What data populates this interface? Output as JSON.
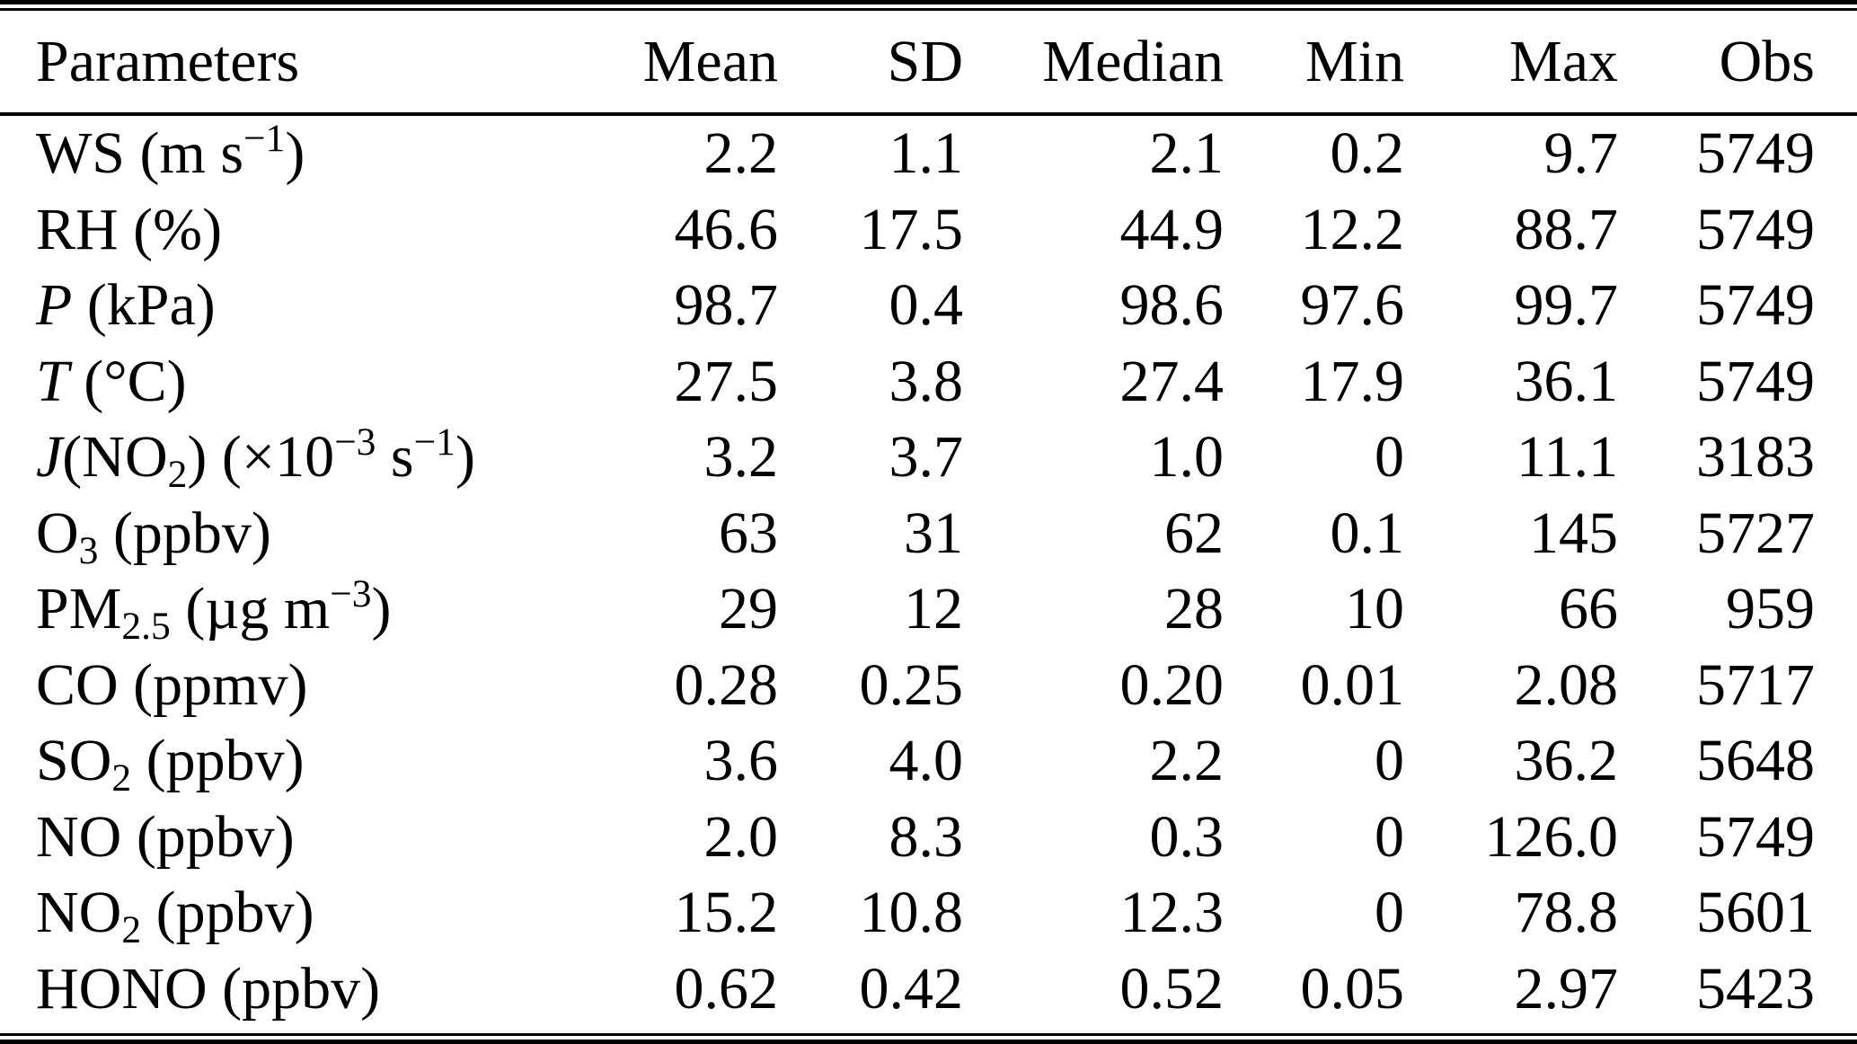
{
  "page": {
    "background": "#ffffff",
    "text_color": "#000000"
  },
  "table": {
    "columns": [
      {
        "key": "param",
        "label": "Parameters",
        "align": "left"
      },
      {
        "key": "mean",
        "label": "Mean",
        "align": "right"
      },
      {
        "key": "sd",
        "label": "SD",
        "align": "right"
      },
      {
        "key": "median",
        "label": "Median",
        "align": "right"
      },
      {
        "key": "min",
        "label": "Min",
        "align": "right"
      },
      {
        "key": "max",
        "label": "Max",
        "align": "right"
      },
      {
        "key": "obs",
        "label": "Obs",
        "align": "right"
      }
    ],
    "rows": [
      {
        "param": [
          {
            "t": "WS (m s"
          },
          {
            "t": "−1",
            "s": "sup"
          },
          {
            "t": ")"
          }
        ],
        "values": [
          "2.2",
          "1.1",
          "2.1",
          "0.2",
          "9.7",
          "5749"
        ]
      },
      {
        "param": [
          {
            "t": "RH (%)"
          }
        ],
        "values": [
          "46.6",
          "17.5",
          "44.9",
          "12.2",
          "88.7",
          "5749"
        ]
      },
      {
        "param": [
          {
            "t": "P",
            "s": "i"
          },
          {
            "t": " (kPa)"
          }
        ],
        "values": [
          "98.7",
          "0.4",
          "98.6",
          "97.6",
          "99.7",
          "5749"
        ]
      },
      {
        "param": [
          {
            "t": "T",
            "s": "i"
          },
          {
            "t": " (°C)"
          }
        ],
        "values": [
          "27.5",
          "3.8",
          "27.4",
          "17.9",
          "36.1",
          "5749"
        ]
      },
      {
        "param": [
          {
            "t": "J",
            "s": "i"
          },
          {
            "t": "(NO"
          },
          {
            "t": "2",
            "s": "sub"
          },
          {
            "t": ") (×10"
          },
          {
            "t": "−3",
            "s": "sup"
          },
          {
            "t": " s"
          },
          {
            "t": "−1",
            "s": "sup"
          },
          {
            "t": ")"
          }
        ],
        "values": [
          "3.2",
          "3.7",
          "1.0",
          "0",
          "11.1",
          "3183"
        ]
      },
      {
        "param": [
          {
            "t": "O"
          },
          {
            "t": "3",
            "s": "sub"
          },
          {
            "t": " (ppbv)"
          }
        ],
        "values": [
          "63",
          "31",
          "62",
          "0.1",
          "145",
          "5727"
        ]
      },
      {
        "param": [
          {
            "t": "PM"
          },
          {
            "t": "2.5",
            "s": "sub"
          },
          {
            "t": " (µg m"
          },
          {
            "t": "−3",
            "s": "sup"
          },
          {
            "t": ")"
          }
        ],
        "values": [
          "29",
          "12",
          "28",
          "10",
          "66",
          "959"
        ]
      },
      {
        "param": [
          {
            "t": "CO (ppmv)"
          }
        ],
        "values": [
          "0.28",
          "0.25",
          "0.20",
          "0.01",
          "2.08",
          "5717"
        ]
      },
      {
        "param": [
          {
            "t": "SO"
          },
          {
            "t": "2",
            "s": "sub"
          },
          {
            "t": " (ppbv)"
          }
        ],
        "values": [
          "3.6",
          "4.0",
          "2.2",
          "0",
          "36.2",
          "5648"
        ]
      },
      {
        "param": [
          {
            "t": "NO (ppbv)"
          }
        ],
        "values": [
          "2.0",
          "8.3",
          "0.3",
          "0",
          "126.0",
          "5749"
        ]
      },
      {
        "param": [
          {
            "t": "NO"
          },
          {
            "t": "2",
            "s": "sub"
          },
          {
            "t": " (ppbv)"
          }
        ],
        "values": [
          "15.2",
          "10.8",
          "12.3",
          "0",
          "78.8",
          "5601"
        ]
      },
      {
        "param": [
          {
            "t": "HONO (ppbv)"
          }
        ],
        "values": [
          "0.62",
          "0.42",
          "0.52",
          "0.05",
          "2.97",
          "5423"
        ]
      }
    ]
  },
  "chart_data": {
    "type": "table",
    "columns": [
      "Parameters",
      "Mean",
      "SD",
      "Median",
      "Min",
      "Max",
      "Obs"
    ],
    "rows": [
      [
        "WS (m s−1)",
        "2.2",
        "1.1",
        "2.1",
        "0.2",
        "9.7",
        "5749"
      ],
      [
        "RH (%)",
        "46.6",
        "17.5",
        "44.9",
        "12.2",
        "88.7",
        "5749"
      ],
      [
        "P (kPa)",
        "98.7",
        "0.4",
        "98.6",
        "97.6",
        "99.7",
        "5749"
      ],
      [
        "T (°C)",
        "27.5",
        "3.8",
        "27.4",
        "17.9",
        "36.1",
        "5749"
      ],
      [
        "J(NO2) (×10−3 s−1)",
        "3.2",
        "3.7",
        "1.0",
        "0",
        "11.1",
        "3183"
      ],
      [
        "O3 (ppbv)",
        "63",
        "31",
        "62",
        "0.1",
        "145",
        "5727"
      ],
      [
        "PM2.5 (µg m−3)",
        "29",
        "12",
        "28",
        "10",
        "66",
        "959"
      ],
      [
        "CO (ppmv)",
        "0.28",
        "0.25",
        "0.20",
        "0.01",
        "2.08",
        "5717"
      ],
      [
        "SO2 (ppbv)",
        "3.6",
        "4.0",
        "2.2",
        "0",
        "36.2",
        "5648"
      ],
      [
        "NO (ppbv)",
        "2.0",
        "8.3",
        "0.3",
        "0",
        "126.0",
        "5749"
      ],
      [
        "NO2 (ppbv)",
        "15.2",
        "10.8",
        "12.3",
        "0",
        "78.8",
        "5601"
      ],
      [
        "HONO (ppbv)",
        "0.62",
        "0.42",
        "0.52",
        "0.05",
        "2.97",
        "5423"
      ]
    ]
  }
}
